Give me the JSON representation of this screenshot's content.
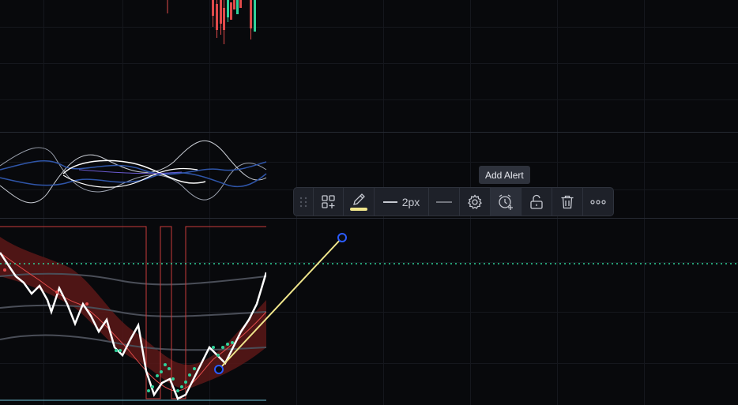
{
  "toolbar": {
    "items": [
      {
        "id": "drag",
        "icon": "drag-handle-icon"
      },
      {
        "id": "template",
        "icon": "template-add-icon"
      },
      {
        "id": "color",
        "icon": "pencil-icon",
        "color": "#f0e68c"
      },
      {
        "id": "width",
        "icon": "line-thickness-icon",
        "label": "2px"
      },
      {
        "id": "style",
        "icon": "line-style-icon"
      },
      {
        "id": "settings",
        "icon": "gear-icon"
      },
      {
        "id": "alert",
        "icon": "alarm-add-icon"
      },
      {
        "id": "lock",
        "icon": "unlock-icon"
      },
      {
        "id": "delete",
        "icon": "trash-icon"
      },
      {
        "id": "more",
        "icon": "more-icon"
      }
    ]
  },
  "tooltip": {
    "text": "Add Alert"
  },
  "colors": {
    "background": "#08090c",
    "toolbar_bg": "#1e2129",
    "trendline": "#f0e68c",
    "anchor": "#2b5cff",
    "dotted_level": "#2fd19a",
    "bearish": "#e04a4a",
    "bullish": "#2fd19a",
    "band_fill": "#5a1717"
  }
}
